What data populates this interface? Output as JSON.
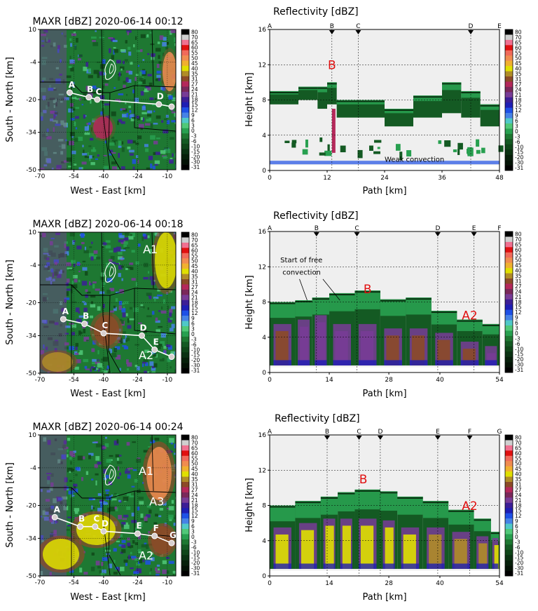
{
  "colorbar": {
    "ticks": [
      "80",
      "70",
      "65",
      "60",
      "55",
      "50",
      "45",
      "40",
      "35",
      "31",
      "27",
      "24",
      "21",
      "18",
      "15",
      "12",
      "9",
      "6",
      "3",
      "0",
      "-3",
      "-6",
      "-10",
      "-15",
      "-20",
      "-30",
      "-31"
    ],
    "colors": [
      "#000000",
      "#cfcfcf",
      "#f07090",
      "#e01010",
      "#f06a5a",
      "#f08c50",
      "#f0b030",
      "#e0e000",
      "#b08c28",
      "#8c4a28",
      "#b4285a",
      "#7a285a",
      "#783c96",
      "#3c1e96",
      "#1e1eb4",
      "#1e50e6",
      "#4682e6",
      "#50c8c8",
      "#50c878",
      "#28a050",
      "#1e7832",
      "#145a23",
      "#0f4619",
      "#0a3212",
      "#06200a",
      "#031205",
      "#000000"
    ]
  },
  "panels": [
    {
      "map": {
        "title": "MAXR [dBZ] 2020-06-14 00:12",
        "xlabel": "West - East [km]",
        "ylabel": "South - North [km]",
        "xticks": [
          "-70",
          "-54",
          "-40",
          "-24",
          "-10"
        ],
        "yticks": [
          "10",
          "-4",
          "-20",
          "-34",
          "-50"
        ],
        "xlim": [
          -70,
          -6
        ],
        "ylim": [
          -50,
          10
        ],
        "path_labels": [
          "A",
          "B",
          "C",
          "D"
        ],
        "path_points": [
          [
            -56,
            -17
          ],
          [
            -47,
            -19
          ],
          [
            -43,
            -20
          ],
          [
            -14,
            -22
          ],
          [
            -8,
            -23
          ]
        ],
        "region_labels": []
      },
      "cross": {
        "title": "Reflectivity [dBZ]",
        "xlabel": "Path [km]",
        "ylabel": "Height [km]",
        "xticks": [
          "0",
          "12",
          "24",
          "36",
          "48"
        ],
        "xtick_values": [
          0,
          12,
          24,
          36,
          48
        ],
        "xlim": [
          0,
          48
        ],
        "yticks": [
          "16",
          "12",
          "8",
          "4",
          "0"
        ],
        "ytick_values": [
          16,
          12,
          8,
          4,
          0
        ],
        "ylim": [
          0,
          16
        ],
        "markers": [
          {
            "label": "A",
            "x": 0
          },
          {
            "label": "B",
            "x": 13
          },
          {
            "label": "C",
            "x": 18.5
          },
          {
            "label": "D",
            "x": 42
          },
          {
            "label": "E",
            "x": 48
          }
        ],
        "red_labels": [
          {
            "text": "B",
            "x": 13,
            "y": 11.5
          }
        ],
        "notes": [
          {
            "text": "Weak convection",
            "x": 24,
            "y": 1
          }
        ]
      }
    },
    {
      "map": {
        "title": "MAXR [dBZ] 2020-06-14 00:18",
        "xlabel": "West - East [km]",
        "ylabel": "South - North [km]",
        "xticks": [
          "-70",
          "-54",
          "-40",
          "-24",
          "-10"
        ],
        "yticks": [
          "10",
          "-4",
          "-20",
          "-34",
          "-50"
        ],
        "xlim": [
          -70,
          -6
        ],
        "ylim": [
          -50,
          10
        ],
        "path_labels": [
          "A",
          "B",
          "C",
          "D",
          "E"
        ],
        "path_points": [
          [
            -59,
            -27
          ],
          [
            -49,
            -29
          ],
          [
            -40,
            -33
          ],
          [
            -22,
            -34
          ],
          [
            -16,
            -40
          ],
          [
            -8,
            -43
          ]
        ],
        "region_labels": [
          {
            "text": "A1",
            "x": -18,
            "y": 1
          },
          {
            "text": "A2",
            "x": -20,
            "y": -44
          }
        ]
      },
      "cross": {
        "title": "Reflectivity [dBZ]",
        "xlabel": "Path [km]",
        "ylabel": "Height [km]",
        "xticks": [
          "0",
          "14",
          "28",
          "40",
          "54"
        ],
        "xtick_values": [
          0,
          14,
          28,
          40,
          54
        ],
        "xlim": [
          0,
          54
        ],
        "yticks": [
          "16",
          "12",
          "8",
          "4",
          "0"
        ],
        "ytick_values": [
          16,
          12,
          8,
          4,
          0
        ],
        "ylim": [
          0,
          16
        ],
        "markers": [
          {
            "label": "A",
            "x": 0
          },
          {
            "label": "B",
            "x": 11
          },
          {
            "label": "C",
            "x": 20.5
          },
          {
            "label": "D",
            "x": 39.5
          },
          {
            "label": "E",
            "x": 48
          },
          {
            "label": "F",
            "x": 54
          }
        ],
        "red_labels": [
          {
            "text": "B",
            "x": 23,
            "y": 9
          },
          {
            "text": "A2",
            "x": 47,
            "y": 6
          }
        ],
        "notes": [
          {
            "text": "Start of free",
            "x": 2.5,
            "y": 12.5
          },
          {
            "text": "convection",
            "x": 3,
            "y": 11.1
          }
        ]
      }
    },
    {
      "map": {
        "title": "MAXR [dBZ] 2020-06-14 00:24",
        "xlabel": "West - East [km]",
        "ylabel": "South - North [km]",
        "xticks": [
          "-70",
          "-54",
          "-40",
          "-24",
          "-10"
        ],
        "yticks": [
          "10",
          "-4",
          "-20",
          "-34",
          "-50"
        ],
        "xlim": [
          -70,
          -6
        ],
        "ylim": [
          -50,
          10
        ],
        "path_labels": [
          "A",
          "B",
          "C",
          "D",
          "E",
          "F",
          "G"
        ],
        "path_points": [
          [
            -63,
            -25
          ],
          [
            -51,
            -29
          ],
          [
            -44,
            -29
          ],
          [
            -40,
            -31
          ],
          [
            -24,
            -32
          ],
          [
            -16,
            -33
          ],
          [
            -8,
            -36
          ]
        ],
        "region_labels": [
          {
            "text": "A1",
            "x": -20,
            "y": -7
          },
          {
            "text": "A3",
            "x": -15,
            "y": -20
          },
          {
            "text": "A2",
            "x": -20,
            "y": -43
          }
        ]
      },
      "cross": {
        "title": "Reflectivity [dBZ]",
        "xlabel": "Path [km]",
        "ylabel": "Height [km]",
        "xticks": [
          "0",
          "14",
          "28",
          "40",
          "54"
        ],
        "xtick_values": [
          0,
          14,
          28,
          40,
          54
        ],
        "xlim": [
          0,
          54
        ],
        "yticks": [
          "16",
          "12",
          "8",
          "4",
          "0"
        ],
        "ytick_values": [
          16,
          12,
          8,
          4,
          0
        ],
        "ylim": [
          0,
          16
        ],
        "markers": [
          {
            "label": "A",
            "x": 0
          },
          {
            "label": "B",
            "x": 13.5
          },
          {
            "label": "C",
            "x": 21
          },
          {
            "label": "D",
            "x": 26
          },
          {
            "label": "E",
            "x": 39.5
          },
          {
            "label": "F",
            "x": 47
          },
          {
            "label": "G",
            "x": 54
          }
        ],
        "red_labels": [
          {
            "text": "B",
            "x": 22,
            "y": 10.5
          },
          {
            "text": "A2",
            "x": 47,
            "y": 7.5
          }
        ],
        "notes": []
      }
    }
  ]
}
